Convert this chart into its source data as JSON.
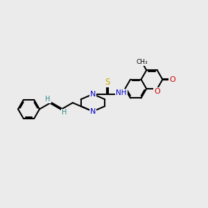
{
  "background_color": "#ebebeb",
  "bond_color": "#000000",
  "N_color": "#0000cc",
  "O_color": "#cc0000",
  "S_color": "#ccaa00",
  "H_label_color": "#338888",
  "figsize": [
    3.0,
    3.0
  ],
  "dpi": 100,
  "xlim": [
    0,
    10
  ],
  "ylim": [
    2.0,
    8.0
  ]
}
